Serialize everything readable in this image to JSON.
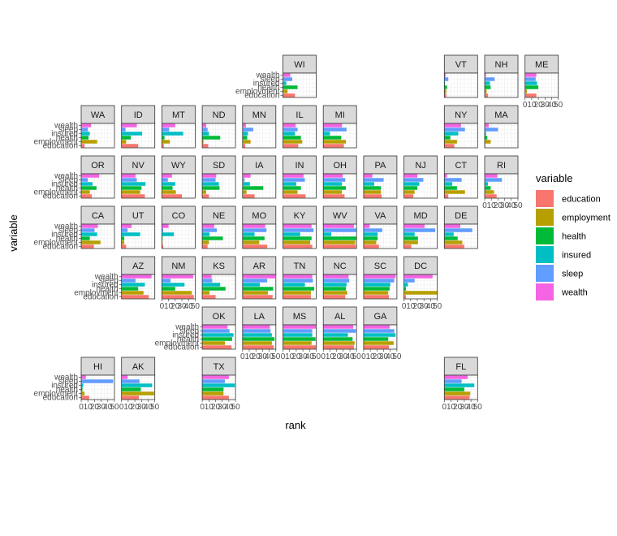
{
  "chart_data": {
    "type": "bar",
    "orientation": "horizontal",
    "layout": "geofacet-us-states",
    "xlabel": "rank",
    "ylabel": "variable",
    "xlim": [
      0,
      50
    ],
    "x_ticks": [
      0,
      10,
      20,
      30,
      40,
      50
    ],
    "grid": true,
    "legend": {
      "title": "variable",
      "placement": "right",
      "entries": [
        {
          "name": "education",
          "color": "#F8766D"
        },
        {
          "name": "employment",
          "color": "#B79F00"
        },
        {
          "name": "health",
          "color": "#00BA38"
        },
        {
          "name": "insured",
          "color": "#00BFC4"
        },
        {
          "name": "sleep",
          "color": "#619CFF"
        },
        {
          "name": "wealth",
          "color": "#F564E3"
        }
      ]
    },
    "categories": [
      "education",
      "employment",
      "health",
      "insured",
      "sleep",
      "wealth"
    ],
    "facets": [
      {
        "state": "WI",
        "row": 0,
        "col": 5,
        "values": [
          18,
          7,
          22,
          5,
          14,
          11
        ]
      },
      {
        "state": "VT",
        "row": 0,
        "col": 9,
        "values": [
          3,
          3,
          4,
          1,
          6,
          2
        ]
      },
      {
        "state": "NH",
        "row": 0,
        "col": 10,
        "values": [
          5,
          3,
          9,
          8,
          15,
          2
        ]
      },
      {
        "state": "ME",
        "row": 0,
        "col": 11,
        "values": [
          17,
          3,
          20,
          18,
          16,
          17
        ]
      },
      {
        "state": "WA",
        "row": 1,
        "col": 0,
        "values": [
          5,
          24,
          11,
          13,
          10,
          15
        ]
      },
      {
        "state": "ID",
        "row": 1,
        "col": 1,
        "values": [
          25,
          7,
          14,
          31,
          6,
          23
        ]
      },
      {
        "state": "MT",
        "row": 1,
        "col": 2,
        "values": [
          3,
          12,
          4,
          32,
          11,
          20
        ]
      },
      {
        "state": "ND",
        "row": 1,
        "col": 3,
        "values": [
          9,
          2,
          27,
          10,
          8,
          6
        ]
      },
      {
        "state": "MN",
        "row": 1,
        "col": 4,
        "values": [
          4,
          12,
          7,
          8,
          16,
          5
        ]
      },
      {
        "state": "IL",
        "row": 1,
        "col": 5,
        "values": [
          23,
          29,
          27,
          18,
          22,
          19
        ]
      },
      {
        "state": "MI",
        "row": 1,
        "col": 6,
        "values": [
          31,
          34,
          27,
          10,
          35,
          28
        ]
      },
      {
        "state": "NY",
        "row": 1,
        "col": 9,
        "values": [
          15,
          19,
          9,
          21,
          31,
          25
        ]
      },
      {
        "state": "MA",
        "row": 1,
        "col": 10,
        "values": [
          1,
          9,
          4,
          2,
          20,
          6
        ]
      },
      {
        "state": "OR",
        "row": 2,
        "col": 0,
        "values": [
          16,
          13,
          23,
          17,
          10,
          27
        ]
      },
      {
        "state": "NV",
        "row": 2,
        "col": 1,
        "values": [
          35,
          28,
          30,
          36,
          23,
          21
        ]
      },
      {
        "state": "WY",
        "row": 2,
        "col": 2,
        "values": [
          30,
          21,
          16,
          20,
          9,
          15
        ]
      },
      {
        "state": "SD",
        "row": 2,
        "col": 3,
        "values": [
          10,
          6,
          26,
          25,
          20,
          21
        ]
      },
      {
        "state": "IA",
        "row": 2,
        "col": 4,
        "values": [
          18,
          6,
          31,
          11,
          3,
          12
        ]
      },
      {
        "state": "IN",
        "row": 2,
        "col": 5,
        "values": [
          34,
          22,
          27,
          20,
          33,
          31
        ]
      },
      {
        "state": "OH",
        "row": 2,
        "col": 6,
        "values": [
          32,
          28,
          34,
          28,
          33,
          29
        ]
      },
      {
        "state": "PA",
        "row": 2,
        "col": 7,
        "values": [
          27,
          26,
          26,
          16,
          30,
          13
        ]
      },
      {
        "state": "NJ",
        "row": 2,
        "col": 8,
        "values": [
          14,
          16,
          20,
          23,
          29,
          20
        ]
      },
      {
        "state": "CT",
        "row": 2,
        "col": 9,
        "values": [
          6,
          31,
          19,
          12,
          26,
          4
        ]
      },
      {
        "state": "RI",
        "row": 2,
        "col": 10,
        "values": [
          18,
          14,
          9,
          5,
          26,
          19
        ]
      },
      {
        "state": "CA",
        "row": 3,
        "col": 0,
        "values": [
          19,
          29,
          13,
          24,
          20,
          25
        ]
      },
      {
        "state": "UT",
        "row": 3,
        "col": 1,
        "values": [
          7,
          4,
          4,
          28,
          9,
          15
        ]
      },
      {
        "state": "CO",
        "row": 3,
        "col": 2,
        "values": [
          2,
          1,
          1,
          18,
          2,
          10
        ]
      },
      {
        "state": "NE",
        "row": 3,
        "col": 3,
        "values": [
          8,
          10,
          31,
          11,
          22,
          18
        ]
      },
      {
        "state": "MO",
        "row": 3,
        "col": 4,
        "values": [
          37,
          25,
          33,
          18,
          36,
          34
        ]
      },
      {
        "state": "KY",
        "row": 3,
        "col": 5,
        "values": [
          44,
          41,
          43,
          26,
          46,
          43
        ]
      },
      {
        "state": "WV",
        "row": 3,
        "col": 6,
        "values": [
          49,
          48,
          50,
          12,
          50,
          46
        ]
      },
      {
        "state": "VA",
        "row": 3,
        "col": 7,
        "values": [
          23,
          19,
          21,
          21,
          28,
          9
        ]
      },
      {
        "state": "MD",
        "row": 3,
        "col": 8,
        "values": [
          11,
          21,
          21,
          16,
          47,
          31
        ]
      },
      {
        "state": "DE",
        "row": 3,
        "col": 9,
        "values": [
          30,
          27,
          20,
          14,
          42,
          24
        ]
      },
      {
        "state": "AZ",
        "row": 4,
        "col": 1,
        "values": [
          41,
          33,
          25,
          35,
          21,
          45
        ]
      },
      {
        "state": "NM",
        "row": 4,
        "col": 2,
        "values": [
          48,
          45,
          20,
          34,
          13,
          47
        ]
      },
      {
        "state": "KS",
        "row": 4,
        "col": 3,
        "values": [
          20,
          11,
          35,
          27,
          15,
          14
        ]
      },
      {
        "state": "AR",
        "row": 4,
        "col": 4,
        "values": [
          45,
          38,
          46,
          26,
          37,
          49
        ]
      },
      {
        "state": "TN",
        "row": 4,
        "col": 5,
        "values": [
          42,
          42,
          47,
          33,
          45,
          44
        ]
      },
      {
        "state": "NC",
        "row": 4,
        "col": 6,
        "values": [
          33,
          36,
          34,
          35,
          39,
          38
        ]
      },
      {
        "state": "SC",
        "row": 4,
        "col": 7,
        "values": [
          38,
          37,
          39,
          40,
          46,
          48
        ]
      },
      {
        "state": "DC",
        "row": 4,
        "col": 8,
        "values": [
          3,
          50,
          3,
          6,
          16,
          43
        ]
      },
      {
        "state": "OK",
        "row": 5,
        "col": 3,
        "values": [
          44,
          34,
          45,
          47,
          41,
          38
        ]
      },
      {
        "state": "LA",
        "row": 5,
        "col": 4,
        "values": [
          47,
          44,
          48,
          44,
          42,
          41
        ]
      },
      {
        "state": "MS",
        "row": 5,
        "col": 5,
        "values": [
          50,
          43,
          49,
          44,
          44,
          50
        ]
      },
      {
        "state": "AL",
        "row": 5,
        "col": 6,
        "values": [
          46,
          47,
          44,
          37,
          49,
          45
        ]
      },
      {
        "state": "GA",
        "row": 5,
        "col": 7,
        "values": [
          38,
          45,
          37,
          48,
          46,
          39
        ]
      },
      {
        "state": "HI",
        "row": 6,
        "col": 0,
        "values": [
          12,
          5,
          2,
          3,
          48,
          7
        ]
      },
      {
        "state": "AK",
        "row": 6,
        "col": 1,
        "values": [
          26,
          49,
          29,
          46,
          27,
          9
        ]
      },
      {
        "state": "TX",
        "row": 6,
        "col": 3,
        "values": [
          40,
          32,
          32,
          49,
          34,
          40
        ]
      },
      {
        "state": "FL",
        "row": 6,
        "col": 9,
        "values": [
          38,
          39,
          30,
          45,
          26,
          35
        ]
      }
    ]
  }
}
